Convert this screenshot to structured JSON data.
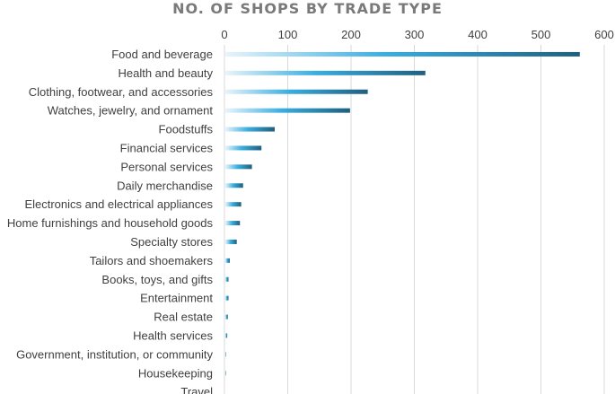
{
  "chart_data": {
    "type": "bar",
    "orientation": "horizontal",
    "title": "NO. OF SHOPS BY TRADE TYPE",
    "xlabel": "",
    "ylabel": "",
    "xlim": [
      0,
      600
    ],
    "x_ticks": [
      0,
      100,
      200,
      300,
      400,
      500,
      600
    ],
    "grid": true,
    "legend": "none",
    "categories": [
      "Food and beverage",
      "Health and beauty",
      "Clothing, footwear, and accessories",
      "Watches, jewelry, and ornament",
      "Foodstuffs",
      "Financial services",
      "Personal services",
      "Daily merchandise",
      "Electronics and electrical appliances",
      "Home furnishings and household goods",
      "Specialty stores",
      "Tailors and shoemakers",
      "Books, toys, and gifts",
      "Entertainment",
      "Real estate",
      "Health services",
      "Government, institution, or community",
      "Housekeeping",
      "Travel"
    ],
    "values": [
      560,
      316,
      225,
      197,
      78,
      57,
      42,
      28,
      25,
      23,
      18,
      7,
      5,
      5,
      4,
      3,
      1,
      1,
      0
    ],
    "colors": {
      "bar_start": "#e8f4fb",
      "bar_mid": "#3aaee0",
      "bar_end": "#1f5f80",
      "text": "#404040",
      "title": "#7a7a7a",
      "grid": "#d9d9d9"
    }
  }
}
